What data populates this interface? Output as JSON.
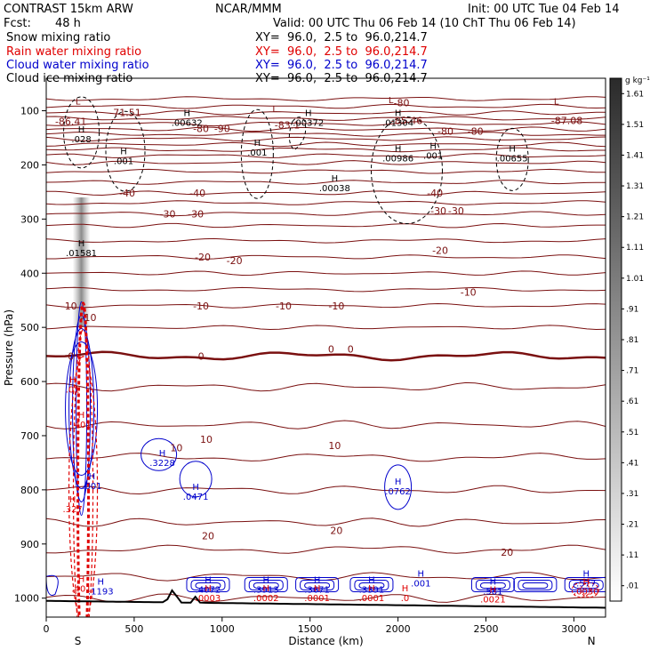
{
  "header": {
    "model": "CONTRAST 15km ARW",
    "center": "NCAR/MMM",
    "init": "Init: 00 UTC Tue 04 Feb 14",
    "fcst_label": "Fcst:",
    "fcst_value": "48 h",
    "valid": "Valid: 00 UTC Thu 06 Feb 14 (10 ChT Thu 06 Feb 14)"
  },
  "fields": [
    {
      "name": "Snow mixing ratio",
      "color": "#000000",
      "xy": "XY=  96.0,  2.5 to  96.0,214.7"
    },
    {
      "name": "Rain water mixing ratio",
      "color": "#e00000",
      "xy": "XY=  96.0,  2.5 to  96.0,214.7"
    },
    {
      "name": "Cloud water mixing ratio",
      "color": "#0000cc",
      "xy": "XY=  96.0,  2.5 to  96.0,214.7"
    },
    {
      "name": "Cloud ice mixing ratio",
      "color": "#000000",
      "xy": "XY=  96.0,  2.5 to  96.0,214.7"
    }
  ],
  "chart_data": {
    "type": "cross-section",
    "xlabel": "Distance (km)",
    "ylabel": "Pressure (hPa)",
    "xlim": [
      0,
      3180
    ],
    "ylim": [
      1035,
      40
    ],
    "x_ticks": [
      "0",
      "500",
      "1000",
      "1500",
      "2000",
      "2500",
      "3000"
    ],
    "x_tick_values": [
      0,
      500,
      1000,
      1500,
      2000,
      2500,
      3000
    ],
    "y_ticks": [
      "100",
      "200",
      "300",
      "400",
      "500",
      "600",
      "700",
      "800",
      "900",
      "1000"
    ],
    "y_tick_values": [
      100,
      200,
      300,
      400,
      500,
      600,
      700,
      800,
      900,
      1000
    ],
    "left_end": "S",
    "right_end": "N",
    "colorbar": {
      "unit": "g kg⁻¹",
      "levels": [
        ".01",
        ".11",
        ".21",
        ".31",
        ".41",
        ".51",
        ".61",
        ".71",
        ".81",
        ".91",
        "1.01",
        "1.11",
        "1.21",
        "1.31",
        "1.41",
        "1.51",
        "1.61"
      ],
      "level_values": [
        0.01,
        0.11,
        0.21,
        0.31,
        0.41,
        0.51,
        0.61,
        0.71,
        0.81,
        0.91,
        1.01,
        1.11,
        1.21,
        1.31,
        1.41,
        1.51,
        1.61
      ]
    },
    "temperature_label_values": [
      {
        "t": "-71.51",
        "x": 450,
        "p": 103
      },
      {
        "t": "-80",
        "x": 2020,
        "p": 85
      },
      {
        "t": "-80",
        "x": 2270,
        "p": 138
      },
      {
        "t": "-80",
        "x": 2440,
        "p": 138
      },
      {
        "t": "-87.08",
        "x": 2960,
        "p": 118
      },
      {
        "t": "-86.41",
        "x": 140,
        "p": 120
      },
      {
        "t": "-83.1",
        "x": 1370,
        "p": 126
      },
      {
        "t": "-85.46",
        "x": 2050,
        "p": 118
      },
      {
        "t": "-80",
        "x": 880,
        "p": 133
      },
      {
        "t": "-90",
        "x": 1000,
        "p": 133
      },
      {
        "t": "-40",
        "x": 460,
        "p": 252
      },
      {
        "t": "-40",
        "x": 860,
        "p": 252
      },
      {
        "t": "-40",
        "x": 2210,
        "p": 252
      },
      {
        "t": "-30",
        "x": 690,
        "p": 290
      },
      {
        "t": "-30",
        "x": 850,
        "p": 290
      },
      {
        "t": "-30",
        "x": 2230,
        "p": 285
      },
      {
        "t": "-30",
        "x": 2330,
        "p": 285
      },
      {
        "t": "-20",
        "x": 890,
        "p": 370
      },
      {
        "t": "-20",
        "x": 1070,
        "p": 377
      },
      {
        "t": "-20",
        "x": 2240,
        "p": 358
      },
      {
        "t": "-10",
        "x": 130,
        "p": 460
      },
      {
        "t": "-10",
        "x": 880,
        "p": 460
      },
      {
        "t": "-10",
        "x": 1350,
        "p": 460
      },
      {
        "t": "-10",
        "x": 1650,
        "p": 460
      },
      {
        "t": "-10",
        "x": 2400,
        "p": 435
      },
      {
        "t": "-10",
        "x": 240,
        "p": 482
      },
      {
        "t": "0",
        "x": 140,
        "p": 553
      },
      {
        "t": "0",
        "x": 880,
        "p": 553
      },
      {
        "t": "0",
        "x": 1620,
        "p": 540
      },
      {
        "t": "0",
        "x": 1730,
        "p": 540
      },
      {
        "t": "10",
        "x": 910,
        "p": 707
      },
      {
        "t": "10",
        "x": 1640,
        "p": 718
      },
      {
        "t": "20",
        "x": 920,
        "p": 885
      },
      {
        "t": "20",
        "x": 1650,
        "p": 875
      },
      {
        "t": "20",
        "x": 2620,
        "p": 915
      },
      {
        "t": "10",
        "x": 740,
        "p": 722
      }
    ],
    "extrema": [
      {
        "kind": "L",
        "value": "",
        "x": 180,
        "p": 98,
        "field": "temperature"
      },
      {
        "kind": "L",
        "value": "",
        "x": 1300,
        "p": 112,
        "field": "temperature"
      },
      {
        "kind": "L",
        "value": "",
        "x": 1960,
        "p": 96,
        "field": "temperature"
      },
      {
        "kind": "L",
        "value": "",
        "x": 2900,
        "p": 98,
        "field": "temperature"
      },
      {
        "kind": "H",
        "value": ".028",
        "x": 200,
        "p": 150,
        "field": "snow"
      },
      {
        "kind": "H",
        "value": ".00632",
        "x": 800,
        "p": 120,
        "field": "snow"
      },
      {
        "kind": "H",
        "value": ".00372",
        "x": 1490,
        "p": 120,
        "field": "snow"
      },
      {
        "kind": "H",
        "value": ".01304",
        "x": 2000,
        "p": 120,
        "field": "snow"
      },
      {
        "kind": "H",
        "value": ".001",
        "x": 440,
        "p": 190,
        "field": "snow"
      },
      {
        "kind": "H",
        "value": ".001",
        "x": 1200,
        "p": 175,
        "field": "snow"
      },
      {
        "kind": "H",
        "value": ".00986",
        "x": 2000,
        "p": 185,
        "field": "snow"
      },
      {
        "kind": "H",
        "value": ".001",
        "x": 2200,
        "p": 180,
        "field": "snow"
      },
      {
        "kind": "H",
        "value": ".00655",
        "x": 2650,
        "p": 185,
        "field": "snow"
      },
      {
        "kind": "H",
        "value": ".00038",
        "x": 1640,
        "p": 240,
        "field": "snow"
      },
      {
        "kind": "H",
        "value": ".01581",
        "x": 200,
        "p": 360,
        "field": "snow"
      },
      {
        "kind": "H",
        "value": ".3228",
        "x": 660,
        "p": 748,
        "field": "cloud_water"
      },
      {
        "kind": "H",
        "value": ".0471",
        "x": 850,
        "p": 810,
        "field": "cloud_water"
      },
      {
        "kind": "H",
        "value": ".0762",
        "x": 2000,
        "p": 800,
        "field": "cloud_water"
      },
      {
        "kind": "H",
        "value": ".1193",
        "x": 310,
        "p": 985,
        "field": "cloud_water"
      },
      {
        "kind": "H",
        "value": ".4072",
        "x": 920,
        "p": 982,
        "field": "cloud_water"
      },
      {
        "kind": "H",
        "value": ".0003",
        "x": 920,
        "p": 997,
        "field": "rain"
      },
      {
        "kind": "H",
        "value": ".3913",
        "x": 1250,
        "p": 982,
        "field": "cloud_water"
      },
      {
        "kind": "H",
        "value": ".0002",
        "x": 1250,
        "p": 997,
        "field": "rain"
      },
      {
        "kind": "H",
        "value": ".3671",
        "x": 1540,
        "p": 982,
        "field": "cloud_water"
      },
      {
        "kind": "H",
        "value": ".0001",
        "x": 1540,
        "p": 997,
        "field": "rain"
      },
      {
        "kind": "H",
        "value": ".3391",
        "x": 1850,
        "p": 982,
        "field": "cloud_water"
      },
      {
        "kind": "H",
        "value": ".0001",
        "x": 1850,
        "p": 997,
        "field": "rain"
      },
      {
        "kind": "H",
        "value": ".0",
        "x": 2040,
        "p": 997,
        "field": "rain"
      },
      {
        "kind": "H",
        "value": ".001",
        "x": 2130,
        "p": 970,
        "field": "cloud_water"
      },
      {
        "kind": "H",
        "value": ".581",
        "x": 2540,
        "p": 985,
        "field": "cloud_water"
      },
      {
        "kind": "H",
        "value": ".0021",
        "x": 2540,
        "p": 1000,
        "field": "rain"
      },
      {
        "kind": "H",
        "value": ".577",
        "x": 3070,
        "p": 970,
        "field": "cloud_water"
      },
      {
        "kind": "H",
        "value": ".0030",
        "x": 3070,
        "p": 985,
        "field": "rain"
      },
      {
        "kind": "H",
        "value": ".001",
        "x": 260,
        "p": 790,
        "field": "cloud_water"
      },
      {
        "kind": "H",
        "value": ".401",
        "x": 200,
        "p": 677,
        "field": "rain"
      },
      {
        "kind": "H",
        "value": ".401",
        "x": 200,
        "p": 980,
        "field": "rain"
      },
      {
        "kind": "H",
        "value": ".01",
        "x": 150,
        "p": 612,
        "field": "rain"
      },
      {
        "kind": "H",
        "value": ".327",
        "x": 150,
        "p": 833,
        "field": "rain"
      }
    ]
  }
}
